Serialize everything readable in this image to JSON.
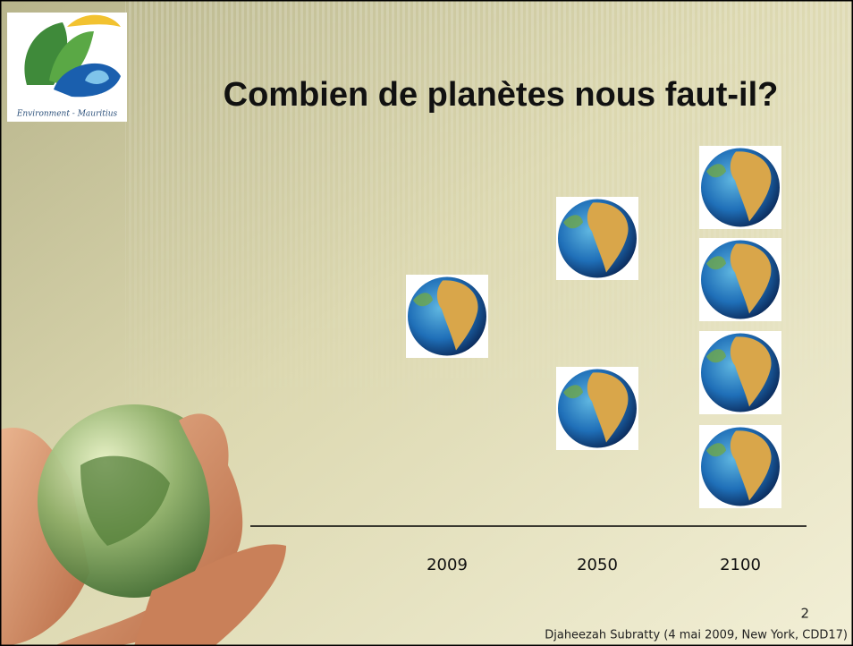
{
  "slide": {
    "title": "Combien de planètes nous faut-il?",
    "logo_text": "Environment - Mauritius",
    "columns": [
      {
        "label": "2009",
        "planets": 1
      },
      {
        "label": "2050",
        "planets": 2
      },
      {
        "label": "2100",
        "planets": 4
      }
    ],
    "page_number": "2",
    "footer": "Djaheezah Subratty (4 mai 2009, New York, CDD17)"
  }
}
